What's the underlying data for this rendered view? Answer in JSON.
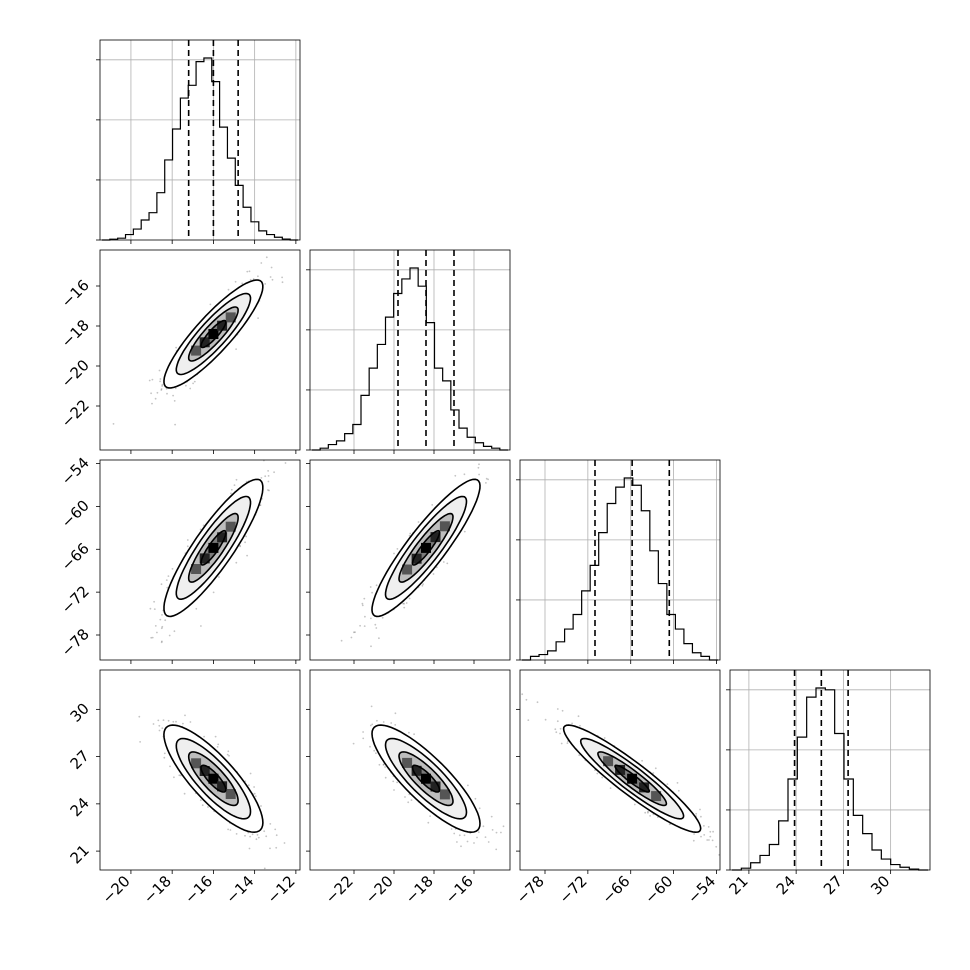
{
  "chart_data": {
    "type": "corner",
    "parameters": [
      {
        "mean": -16.0,
        "sd": 1.2,
        "lim": [
          -21.5,
          -11.8
        ],
        "ticks": [
          -20,
          -18,
          -16,
          -14,
          -12
        ],
        "quantiles": [
          -17.2,
          -16.0,
          -14.8
        ],
        "hist": [
          0,
          0.004,
          0.01,
          0.03,
          0.06,
          0.11,
          0.15,
          0.26,
          0.44,
          0.61,
          0.78,
          0.85,
          0.98,
          1.0,
          0.87,
          0.62,
          0.45,
          0.3,
          0.18,
          0.1,
          0.05,
          0.03,
          0.015,
          0.005,
          0
        ]
      },
      {
        "mean": -18.4,
        "sd": 1.35,
        "lim": [
          -24.2,
          -14.2
        ],
        "ticks": [
          -22,
          -20,
          -18,
          -16
        ],
        "quantiles": [
          -19.8,
          -18.4,
          -17.0
        ],
        "hist": [
          0,
          0.01,
          0.03,
          0.05,
          0.09,
          0.14,
          0.3,
          0.45,
          0.58,
          0.73,
          0.86,
          0.94,
          1.0,
          0.9,
          0.7,
          0.45,
          0.38,
          0.22,
          0.12,
          0.07,
          0.04,
          0.02,
          0.01,
          0
        ]
      },
      {
        "mean": -65.8,
        "sd": 4.8,
        "lim": [
          -81.5,
          -53.5
        ],
        "ticks": [
          -78,
          -72,
          -66,
          -60,
          -54
        ],
        "quantiles": [
          -71.0,
          -65.8,
          -60.6
        ],
        "hist": [
          0,
          0.02,
          0.03,
          0.05,
          0.1,
          0.17,
          0.25,
          0.38,
          0.52,
          0.7,
          0.86,
          0.95,
          1.0,
          0.96,
          0.82,
          0.6,
          0.42,
          0.25,
          0.17,
          0.09,
          0.04,
          0.02,
          0
        ]
      },
      {
        "mean": 25.6,
        "sd": 1.7,
        "lim": [
          19.8,
          32.5
        ],
        "ticks": [
          21,
          24,
          27,
          30
        ],
        "quantiles": [
          23.9,
          25.6,
          27.3
        ],
        "hist": [
          0,
          0.01,
          0.04,
          0.08,
          0.14,
          0.27,
          0.5,
          0.73,
          0.95,
          1.0,
          0.99,
          0.75,
          0.5,
          0.3,
          0.2,
          0.11,
          0.06,
          0.03,
          0.015,
          0.005,
          0
        ]
      }
    ],
    "correlations": {
      "1-0": 0.88,
      "2-0": 0.88,
      "2-1": 0.9,
      "3-0": -0.82,
      "3-1": -0.84,
      "3-2": -0.93
    },
    "contour_levels_sigma": [
      0.5,
      1.0,
      1.5,
      2.0
    ],
    "scatter_points_per_panel": 450,
    "grid": true,
    "colors": {
      "line": "#000000",
      "grid": "#b0b0b0",
      "points": "#555555"
    }
  }
}
